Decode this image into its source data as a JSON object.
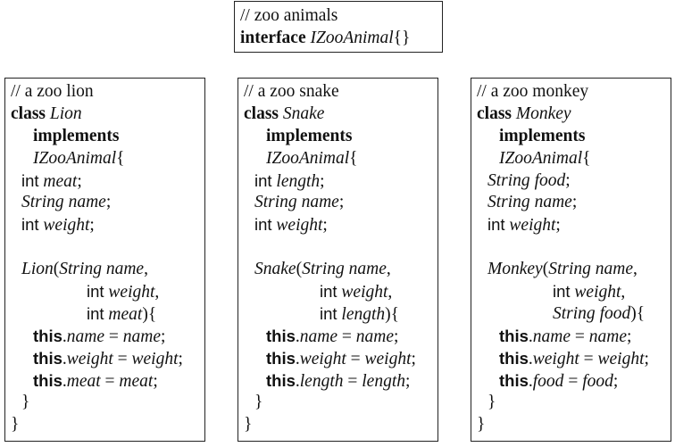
{
  "interface_box": {
    "comment": "// zoo animals",
    "kw": "interface",
    "name": "IZooAnimal",
    "body": "{}"
  },
  "common": {
    "class_kw": "class",
    "implements_kw": "implements",
    "iface": "IZooAnimal",
    "lbrace": "{",
    "rbrace": "}",
    "rparen_brace": "){",
    "lparen": "(",
    "comma": ",",
    "semicolon": ";",
    "eq": " = ",
    "this_kw": "this",
    "dot": ".",
    "String": "String",
    "int": "int",
    "name": "name",
    "weight": "weight"
  },
  "classes": [
    {
      "id": "lion",
      "comment": "// a zoo lion",
      "name": "Lion",
      "field1_type": "int",
      "field1_name": "meat",
      "param3_type": "int",
      "param3_name": "meat"
    },
    {
      "id": "snake",
      "comment": "// a zoo snake",
      "name": "Snake",
      "field1_type": "int",
      "field1_name": "length",
      "param3_type": "int",
      "param3_name": "length"
    },
    {
      "id": "monkey",
      "comment": "// a zoo monkey",
      "name": "Monkey",
      "field1_type": "String",
      "field1_name": "food",
      "param3_type": "String",
      "param3_name": "food"
    }
  ]
}
